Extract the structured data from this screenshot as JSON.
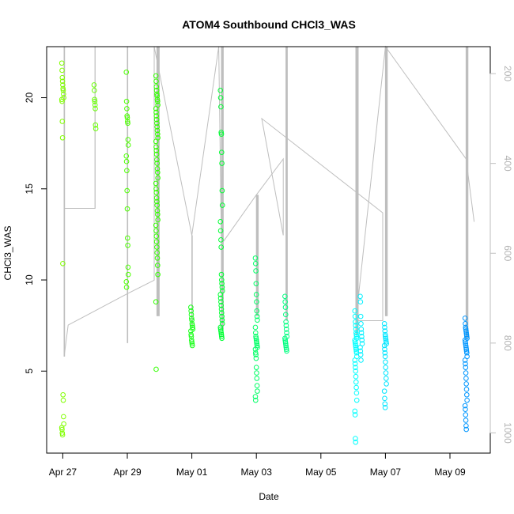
{
  "chart_data": {
    "type": "scatter",
    "title": "ATOM4 Southbound CHCl3_WAS",
    "xlabel": "Date",
    "ylabel": "CHCl3_WAS",
    "x_ticks": [
      "Apr 27",
      "Apr 29",
      "May 01",
      "May 03",
      "May 05",
      "May 07",
      "May 09"
    ],
    "y_ticks": [
      5,
      10,
      15,
      20
    ],
    "y2_ticks": [
      200,
      400,
      600,
      800,
      1000
    ],
    "xlim": [
      "2016-04-26T12:00",
      "2016-05-10T06:00"
    ],
    "ylim": [
      0.5,
      22.8
    ],
    "y2lim_reversed": [
      140,
      1045
    ],
    "y2_label": "",
    "altitude_color": "#bebebe",
    "point_groups": [
      {
        "date": "2016-04-27T00:00",
        "y": [
          21.9,
          21.5,
          21.1,
          20.9,
          20.7,
          20.5,
          20.4,
          20.2,
          20.0,
          19.9,
          19.8,
          18.7,
          17.8,
          10.9,
          3.7,
          3.4,
          2.5,
          2.1,
          1.9,
          1.8,
          1.6,
          1.5
        ],
        "color": "#80ff00"
      },
      {
        "date": "2016-04-28T00:00",
        "y": [
          20.7,
          20.4,
          19.9,
          19.8,
          19.6,
          19.4,
          18.5,
          18.3
        ],
        "color": "#66ff00"
      },
      {
        "date": "2016-04-29T00:00",
        "y": [
          21.4,
          19.8,
          19.4,
          19.0,
          18.9,
          18.7,
          18.6,
          17.7,
          17.4,
          16.8,
          16.5,
          16.0,
          14.9,
          13.9,
          12.3,
          11.9,
          10.7,
          10.3,
          9.9,
          9.6
        ],
        "color": "#4cff00"
      },
      {
        "date": "2016-04-29T22:00",
        "y": [
          21.2,
          20.9,
          20.6,
          20.4,
          20.2,
          20.1,
          19.9,
          19.8,
          19.6,
          19.4,
          19.2,
          19.0,
          18.8,
          18.6,
          18.4,
          18.2,
          18.0,
          17.8,
          17.6,
          17.3,
          17.1,
          16.9,
          16.6,
          16.4,
          16.1,
          15.9,
          15.6,
          15.3,
          15.0,
          14.8,
          14.5,
          14.3,
          14.1,
          13.8,
          13.6,
          13.3,
          13.0,
          12.7,
          12.4,
          12.1,
          11.8,
          11.5,
          11.2,
          10.8,
          10.3,
          8.8,
          5.1
        ],
        "color": "#33ff00"
      },
      {
        "date": "2016-05-01T00:00",
        "y": [
          8.5,
          8.3,
          8.1,
          7.9,
          7.8,
          7.6,
          7.5,
          7.4,
          7.3,
          7.2,
          7.0,
          6.9,
          6.7,
          6.6,
          6.5,
          6.4
        ],
        "color": "#19ff19"
      },
      {
        "date": "2016-05-01T22:00",
        "y": [
          20.4,
          20.0,
          19.5,
          18.1,
          18.0,
          17.0,
          16.4,
          14.9,
          14.1,
          13.2,
          12.7,
          12.2,
          11.8,
          10.3,
          10.0,
          9.8,
          9.6,
          9.4,
          9.2,
          9.0,
          8.8,
          8.6,
          8.4,
          8.2,
          8.0,
          7.8,
          7.6,
          7.4,
          7.3,
          7.2,
          7.1,
          7.0,
          6.9,
          6.8
        ],
        "color": "#00ff33"
      },
      {
        "date": "2016-05-03T00:00",
        "y": [
          11.2,
          10.9,
          10.5,
          9.8,
          9.2,
          8.8,
          8.3,
          8.0,
          7.8,
          7.4,
          7.1,
          6.9,
          6.8,
          6.7,
          6.6,
          6.5,
          6.4,
          6.3,
          6.2,
          6.0,
          5.9,
          5.7,
          5.2,
          4.9,
          4.6,
          4.2,
          3.9,
          3.6,
          3.4
        ],
        "color": "#00ff66"
      },
      {
        "date": "2016-05-03T22:00",
        "y": [
          9.1,
          8.8,
          8.5,
          8.1,
          7.7,
          7.5,
          7.3,
          7.1,
          6.9,
          6.8,
          6.7,
          6.6,
          6.5,
          6.4,
          6.3,
          6.2,
          6.1
        ],
        "color": "#00ff80"
      },
      {
        "date": "2016-05-06T02:00",
        "y": [
          8.3,
          8.0,
          7.7,
          7.5,
          7.3,
          7.1,
          7.0,
          6.9,
          6.8,
          6.7,
          6.6,
          6.5,
          6.4,
          6.3,
          6.2,
          6.1,
          6.0,
          5.8,
          5.6,
          5.4,
          5.2,
          5.0,
          4.7,
          4.4,
          4.1,
          3.8,
          3.4,
          2.8,
          2.6,
          1.3,
          1.1
        ],
        "color": "#00ffff"
      },
      {
        "date": "2016-05-06T06:00",
        "y": [
          9.1,
          8.8,
          8.0,
          7.6,
          7.3,
          7.1,
          6.9,
          6.7,
          6.5,
          6.3,
          6.1,
          5.9,
          5.6
        ],
        "color": "#00f0ff"
      },
      {
        "date": "2016-05-07T00:00",
        "y": [
          7.6,
          7.4,
          7.2,
          7.0,
          6.9,
          6.8,
          6.7,
          6.6,
          6.5,
          6.4,
          6.2,
          6.0,
          5.8,
          5.5,
          5.2,
          4.9,
          4.6,
          4.3,
          3.9,
          3.5,
          3.2,
          3.0
        ],
        "color": "#00e6ff"
      },
      {
        "date": "2016-05-09T12:00",
        "y": [
          7.9,
          7.6,
          7.4,
          7.3,
          7.2,
          7.1,
          7.0,
          6.9,
          6.8,
          6.7,
          6.6,
          6.5,
          6.4,
          6.3,
          6.2,
          6.1,
          6.0,
          5.8,
          5.6,
          5.4,
          5.2,
          4.9,
          4.6,
          4.3,
          4.0,
          3.7,
          3.4,
          3.1,
          2.9,
          2.6,
          2.3,
          2.0,
          1.8
        ],
        "color": "#0096ff"
      }
    ],
    "altitude_spikes": [
      {
        "date": "2016-04-27T01:00",
        "top": 140,
        "bottom": 830,
        "count": 2
      },
      {
        "date": "2016-04-28T00:00",
        "top": 140,
        "bottom": 500,
        "count": 1
      },
      {
        "date": "2016-04-29T00:00",
        "top": 140,
        "bottom": 800,
        "count": 2
      },
      {
        "date": "2016-04-29T22:00",
        "top": 140,
        "bottom": 740,
        "count": 6
      },
      {
        "date": "2016-05-01T00:00",
        "top": 560,
        "bottom": 760,
        "count": 2
      },
      {
        "date": "2016-05-01T22:00",
        "top": 140,
        "bottom": 770,
        "count": 5
      },
      {
        "date": "2016-05-03T00:00",
        "top": 470,
        "bottom": 740,
        "count": 5
      },
      {
        "date": "2016-05-03T22:00",
        "top": 140,
        "bottom": 750,
        "count": 4
      },
      {
        "date": "2016-05-06T02:00",
        "top": 140,
        "bottom": 780,
        "count": 6
      },
      {
        "date": "2016-05-07T00:00",
        "top": 140,
        "bottom": 740,
        "count": 5
      },
      {
        "date": "2016-05-09T12:00",
        "top": 140,
        "bottom": 790,
        "count": 5
      }
    ],
    "altitude_track": [
      {
        "date": "2016-04-27T01:00",
        "alt": 500
      },
      {
        "date": "2016-04-28T00:00",
        "alt": 500
      },
      {
        "date": "2016-04-28T00:00",
        "alt": 140
      },
      {
        "date": "2016-04-27T01:00",
        "alt": 140
      },
      {
        "date": "2016-04-27T01:00",
        "alt": 830
      },
      {
        "date": "2016-04-27T04:00",
        "alt": 760
      },
      {
        "date": "2016-04-29T00:00",
        "alt": 690
      },
      {
        "date": "2016-04-29T20:00",
        "alt": 660
      },
      {
        "date": "2016-04-29T20:00",
        "alt": 140
      },
      {
        "date": "2016-05-01T00:00",
        "alt": 560
      },
      {
        "date": "2016-05-01T20:00",
        "alt": 140
      },
      {
        "date": "2016-05-01T22:00",
        "alt": 580
      },
      {
        "date": "2016-05-03T00:00",
        "alt": 470
      },
      {
        "date": "2016-05-03T20:00",
        "alt": 390
      },
      {
        "date": "2016-05-03T20:00",
        "alt": 560
      },
      {
        "date": "2016-05-03T04:00",
        "alt": 300
      },
      {
        "date": "2016-05-06T22:00",
        "alt": 510
      },
      {
        "date": "2016-05-06T22:00",
        "alt": 750
      },
      {
        "date": "2016-05-06T02:00",
        "alt": 750
      },
      {
        "date": "2016-05-07T00:00",
        "alt": 140
      },
      {
        "date": "2016-05-09T12:00",
        "alt": 390
      },
      {
        "date": "2016-05-09T18:00",
        "alt": 530
      }
    ]
  }
}
